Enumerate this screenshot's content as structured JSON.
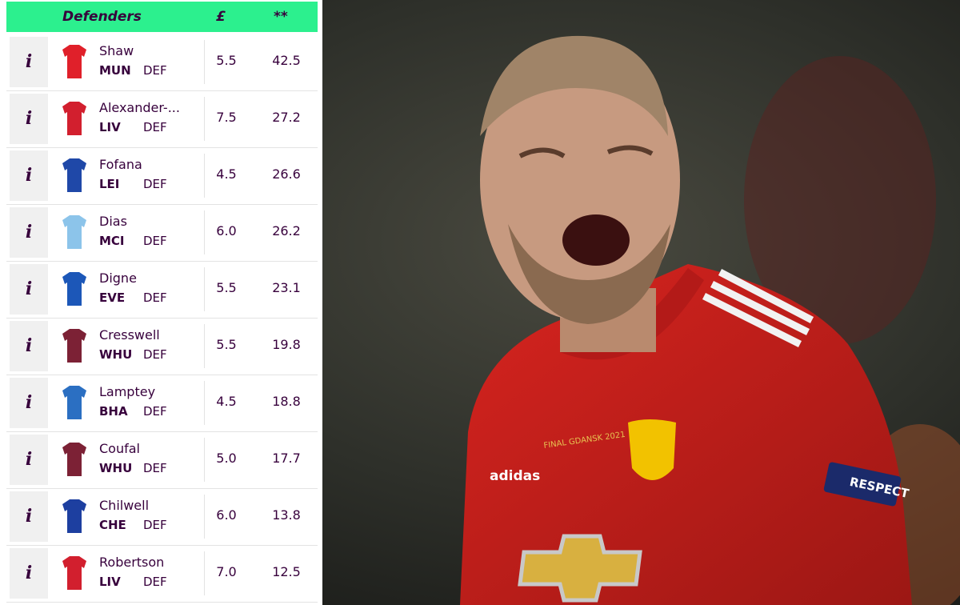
{
  "table": {
    "header": {
      "position": "Defenders",
      "price": "£",
      "score": "**"
    },
    "info_icon": "i",
    "rows": [
      {
        "name": "Shaw",
        "team": "MUN",
        "position": "DEF",
        "price": "5.5",
        "score": "42.5",
        "kit": "#e0202a"
      },
      {
        "name": "Alexander-...",
        "team": "LIV",
        "position": "DEF",
        "price": "7.5",
        "score": "27.2",
        "kit": "#d21f2e"
      },
      {
        "name": "Fofana",
        "team": "LEI",
        "position": "DEF",
        "price": "4.5",
        "score": "26.6",
        "kit": "#1f48a8"
      },
      {
        "name": "Dias",
        "team": "MCI",
        "position": "DEF",
        "price": "6.0",
        "score": "26.2",
        "kit": "#8cc4ea"
      },
      {
        "name": "Digne",
        "team": "EVE",
        "position": "DEF",
        "price": "5.5",
        "score": "23.1",
        "kit": "#1c57b8"
      },
      {
        "name": "Cresswell",
        "team": "WHU",
        "position": "DEF",
        "price": "5.5",
        "score": "19.8",
        "kit": "#7c2135"
      },
      {
        "name": "Lamptey",
        "team": "BHA",
        "position": "DEF",
        "price": "4.5",
        "score": "18.8",
        "kit": "#2b6fc2"
      },
      {
        "name": "Coufal",
        "team": "WHU",
        "position": "DEF",
        "price": "5.0",
        "score": "17.7",
        "kit": "#7c2135"
      },
      {
        "name": "Chilwell",
        "team": "CHE",
        "position": "DEF",
        "price": "6.0",
        "score": "13.8",
        "kit": "#1d3fa0"
      },
      {
        "name": "Robertson",
        "team": "LIV",
        "position": "DEF",
        "price": "7.0",
        "score": "12.5",
        "kit": "#d21f2e"
      }
    ]
  },
  "photo": {
    "sponsor": "adidas",
    "patch": "RESPECT",
    "match_text": "FINAL GDANSK 2021"
  }
}
